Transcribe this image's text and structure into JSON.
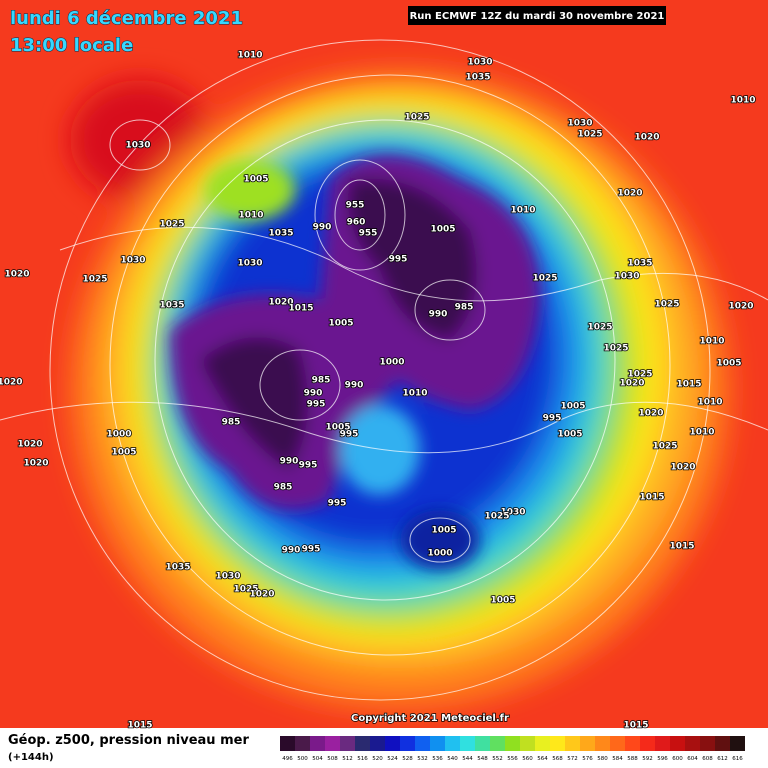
{
  "header": {
    "date": "lundi 6 décembre 2021",
    "time": "13:00 locale",
    "run": "Run ECMWF 12Z du mardi 30 novembre 2021"
  },
  "isobar_labels": [
    "1010",
    "1030",
    "1035",
    "1010",
    "1030",
    "1025",
    "1030",
    "1025",
    "1020",
    "1005",
    "1020",
    "955",
    "1010",
    "1025",
    "1010",
    "990",
    "960",
    "955",
    "1005",
    "1035",
    "1030",
    "1020",
    "1025",
    "1030",
    "995",
    "1025",
    "1035",
    "1030",
    "1035",
    "1020",
    "1015",
    "985",
    "990",
    "1025",
    "1020",
    "1005",
    "1025",
    "1010",
    "1025",
    "1000",
    "1005",
    "1020",
    "985",
    "990",
    "1010",
    "1025",
    "1020",
    "1015",
    "1010",
    "990",
    "995",
    "1005",
    "995",
    "1020",
    "985",
    "1005",
    "995",
    "1000",
    "1005",
    "1010",
    "1020",
    "1025",
    "1005",
    "1020",
    "990",
    "995",
    "1020",
    "985",
    "1015",
    "995",
    "1030",
    "1025",
    "1005",
    "990",
    "995",
    "1000",
    "1015",
    "1035",
    "1030",
    "1025",
    "1020",
    "1005",
    "1015",
    "1015"
  ],
  "footer": {
    "title": "Géop. z500, pression niveau mer",
    "step": "(+144h)",
    "copyright": "Copyright 2021 Meteociel.fr"
  },
  "colorbar": {
    "labels": [
      496,
      500,
      504,
      508,
      512,
      516,
      520,
      524,
      528,
      532,
      536,
      540,
      544,
      548,
      552,
      556,
      560,
      564,
      568,
      572,
      576,
      580,
      584,
      588,
      592,
      596,
      600,
      604,
      608,
      612,
      616
    ]
  }
}
